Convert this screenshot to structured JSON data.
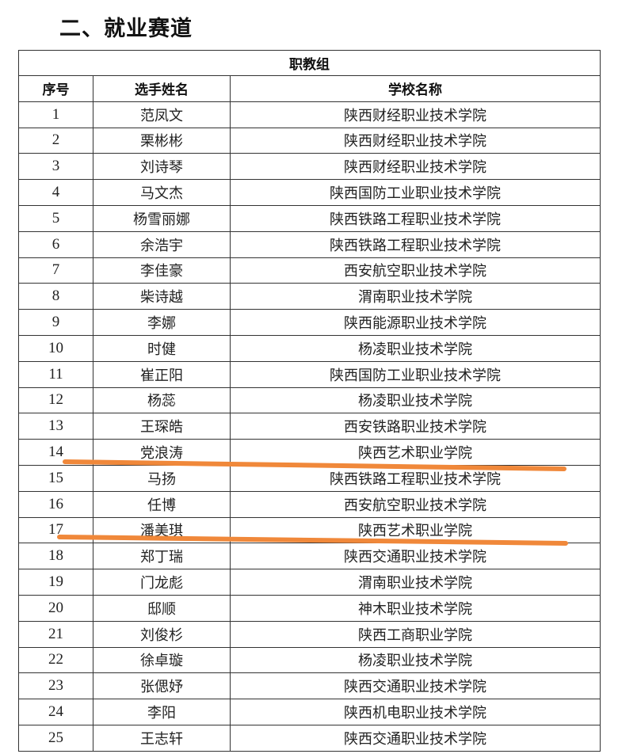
{
  "heading": "二、就业赛道",
  "table": {
    "group": "职教组",
    "columns": [
      "序号",
      "选手姓名",
      "学校名称"
    ],
    "rows": [
      [
        "1",
        "范凤文",
        "陕西财经职业技术学院"
      ],
      [
        "2",
        "栗彬彬",
        "陕西财经职业技术学院"
      ],
      [
        "3",
        "刘诗琴",
        "陕西财经职业技术学院"
      ],
      [
        "4",
        "马文杰",
        "陕西国防工业职业技术学院"
      ],
      [
        "5",
        "杨雪丽娜",
        "陕西铁路工程职业技术学院"
      ],
      [
        "6",
        "余浩宇",
        "陕西铁路工程职业技术学院"
      ],
      [
        "7",
        "李佳豪",
        "西安航空职业技术学院"
      ],
      [
        "8",
        "柴诗越",
        "渭南职业技术学院"
      ],
      [
        "9",
        "李娜",
        "陕西能源职业技术学院"
      ],
      [
        "10",
        "时健",
        "杨凌职业技术学院"
      ],
      [
        "11",
        "崔正阳",
        "陕西国防工业职业技术学院"
      ],
      [
        "12",
        "杨蕊",
        "杨凌职业技术学院"
      ],
      [
        "13",
        "王琛皓",
        "西安铁路职业技术学院"
      ],
      [
        "14",
        "党浪涛",
        "陕西艺术职业学院"
      ],
      [
        "15",
        "马扬",
        "陕西铁路工程职业技术学院"
      ],
      [
        "16",
        "任博",
        "西安航空职业技术学院"
      ],
      [
        "17",
        "潘美琪",
        "陕西艺术职业学院"
      ],
      [
        "18",
        "郑丁瑞",
        "陕西交通职业技术学院"
      ],
      [
        "19",
        "门龙彪",
        "渭南职业技术学院"
      ],
      [
        "20",
        "邸顺",
        "神木职业技术学院"
      ],
      [
        "21",
        "刘俊杉",
        "陕西工商职业学院"
      ],
      [
        "22",
        "徐卓璇",
        "杨凌职业技术学院"
      ],
      [
        "23",
        "张偲妤",
        "陕西交通职业技术学院"
      ],
      [
        "24",
        "李阳",
        "陕西机电职业技术学院"
      ],
      [
        "25",
        "王志轩",
        "陕西交通职业技术学院"
      ]
    ]
  },
  "highlight_color": "#f0883a",
  "underlined_rows": [
    "14",
    "17"
  ]
}
